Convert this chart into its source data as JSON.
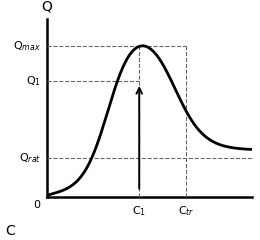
{
  "title": "",
  "ylabel": "Q",
  "xlabel": "C",
  "y_label_Q1": "Q$_1$",
  "y_label_Qmax": "Q$_{max}$",
  "y_label_Qrat": "Q$_{rat}$",
  "x_label_C1": "C$_1$",
  "x_label_Ctr": "C$_{tr}$",
  "Q_max": 0.85,
  "Q1": 0.65,
  "Q_rat": 0.22,
  "C1": 0.45,
  "Ctr": 0.68,
  "xlim": [
    0,
    1.0
  ],
  "ylim": [
    0,
    1.0
  ],
  "bg_color": "#ffffff",
  "curve_color": "#000000",
  "dashed_color": "#666666",
  "arrow_color": "#000000"
}
